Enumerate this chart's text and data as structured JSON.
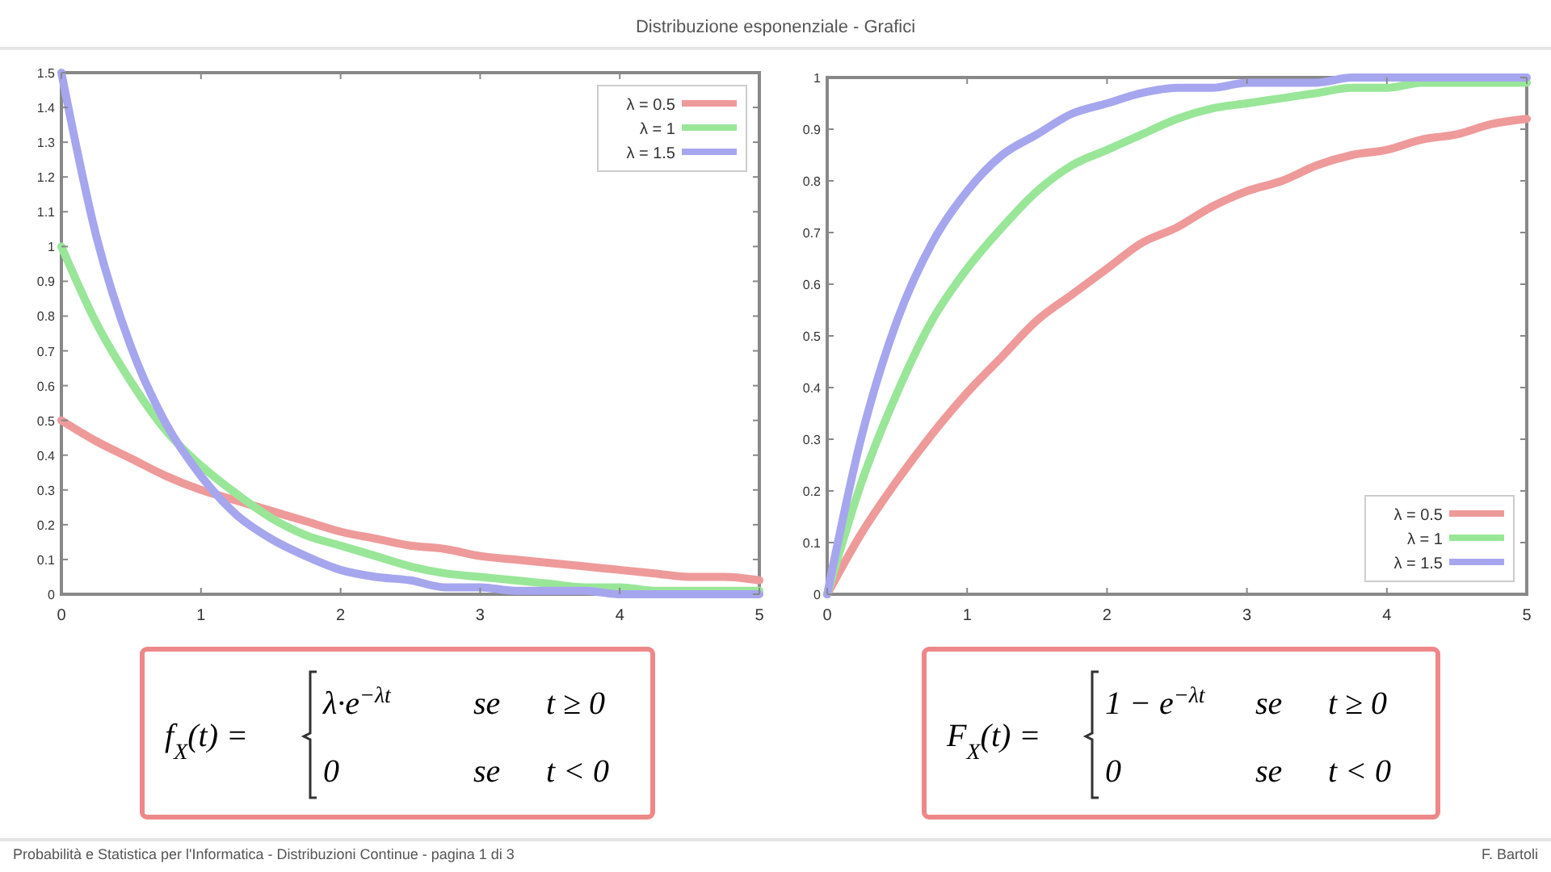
{
  "chart_data": [
    {
      "type": "line",
      "title": "Distribuzione esponenziale - Grafici",
      "x": [
        0,
        0.25,
        0.5,
        0.75,
        1,
        1.25,
        1.5,
        1.75,
        2,
        2.25,
        2.5,
        2.75,
        3,
        3.25,
        3.5,
        3.75,
        4,
        4.25,
        4.5,
        4.75,
        5
      ],
      "series": [
        {
          "name": "λ = 0.5",
          "color": "#ee9a9a",
          "values": [
            0.5,
            0.44,
            0.39,
            0.34,
            0.3,
            0.27,
            0.24,
            0.21,
            0.18,
            0.16,
            0.14,
            0.13,
            0.11,
            0.1,
            0.09,
            0.08,
            0.07,
            0.06,
            0.05,
            0.05,
            0.04
          ]
        },
        {
          "name": "λ = 1",
          "color": "#99e699",
          "values": [
            1,
            0.78,
            0.61,
            0.47,
            0.37,
            0.29,
            0.22,
            0.17,
            0.14,
            0.11,
            0.08,
            0.06,
            0.05,
            0.04,
            0.03,
            0.02,
            0.02,
            0.01,
            0.01,
            0.01,
            0.01
          ]
        },
        {
          "name": "λ = 1.5",
          "color": "#a6a6ef",
          "values": [
            1.5,
            1.03,
            0.71,
            0.49,
            0.34,
            0.23,
            0.16,
            0.11,
            0.07,
            0.05,
            0.04,
            0.02,
            0.02,
            0.01,
            0.01,
            0.01,
            0,
            0,
            0,
            0,
            0
          ]
        }
      ],
      "xlim": [
        0,
        5
      ],
      "xticks": [
        0,
        1,
        2,
        3,
        4,
        5
      ],
      "ylim": [
        0,
        1.5
      ],
      "yticks": [
        0,
        0.1,
        0.2,
        0.3,
        0.4,
        0.5,
        0.6,
        0.7,
        0.8,
        0.9,
        1,
        1.1,
        1.2,
        1.3,
        1.4,
        1.5
      ],
      "legend": "top right",
      "annotations": [
        "f$_{X}$(t) =",
        "λ·e$^{−λt}$",
        "se",
        "t ≥ 0",
        "0",
        "se",
        "t < 0",
        "Probabilità e Statistica per l'Informatica - Distribuzioni Continue - pagina 1 di 3"
      ]
    },
    {
      "type": "line",
      "x": [
        0,
        0.25,
        0.5,
        0.75,
        1,
        1.25,
        1.5,
        1.75,
        2,
        2.25,
        2.5,
        2.75,
        3,
        3.25,
        3.5,
        3.75,
        4,
        4.25,
        4.5,
        4.75,
        5
      ],
      "series": [
        {
          "name": "λ = 0.5",
          "color": "#ee9a9a",
          "values": [
            0,
            0.12,
            0.22,
            0.31,
            0.39,
            0.46,
            0.53,
            0.58,
            0.63,
            0.68,
            0.71,
            0.75,
            0.78,
            0.8,
            0.83,
            0.85,
            0.86,
            0.88,
            0.89,
            0.91,
            0.92
          ]
        },
        {
          "name": "λ = 1",
          "color": "#99e699",
          "values": [
            0,
            0.22,
            0.39,
            0.53,
            0.63,
            0.71,
            0.78,
            0.83,
            0.86,
            0.89,
            0.92,
            0.94,
            0.95,
            0.96,
            0.97,
            0.98,
            0.98,
            0.99,
            0.99,
            0.99,
            0.99
          ]
        },
        {
          "name": "λ = 1.5",
          "color": "#a6a6ef",
          "values": [
            0,
            0.31,
            0.53,
            0.68,
            0.78,
            0.85,
            0.89,
            0.93,
            0.95,
            0.97,
            0.98,
            0.98,
            0.99,
            0.99,
            0.99,
            1,
            1,
            1,
            1,
            1,
            1
          ]
        }
      ],
      "xlim": [
        0,
        5
      ],
      "xticks": [
        0,
        1,
        2,
        3,
        4,
        5
      ],
      "ylim": [
        0,
        1
      ],
      "yticks": [
        0,
        0.1,
        0.2,
        0.3,
        0.4,
        0.5,
        0.6,
        0.7,
        0.8,
        0.9,
        1
      ],
      "legend": "bottom right",
      "annotations": [
        "F$_{X}$(t) =",
        "1 − e$^{−λt}$",
        "se",
        "t ≥ 0",
        "0",
        "se",
        "t < 0",
        "F. Bartoli"
      ]
    }
  ]
}
